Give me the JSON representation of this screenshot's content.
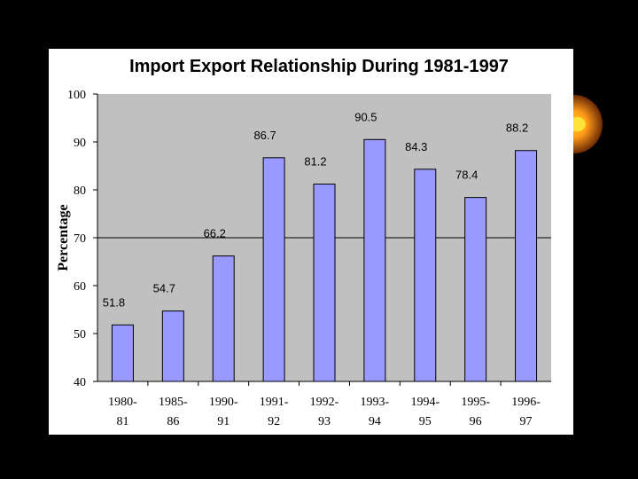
{
  "colors": {
    "background": "#000000",
    "panel": "#ffffff",
    "plot_area": "#c0c0c0",
    "bar": "#9999ff",
    "bar_outline": "#000000",
    "decoration": "#e07a10"
  },
  "chart_data": {
    "type": "bar",
    "title": "Import Export Relationship During 1981-1997",
    "ylabel": "Percentage",
    "xlabel": "",
    "ylim": [
      40,
      100
    ],
    "yticks": [
      40,
      50,
      60,
      70,
      80,
      90,
      100
    ],
    "reference_line": 70,
    "categories": [
      [
        "1980-",
        "81"
      ],
      [
        "1985-",
        "86"
      ],
      [
        "1990-",
        "91"
      ],
      [
        "1991-",
        "92"
      ],
      [
        "1992-",
        "93"
      ],
      [
        "1993-",
        "94"
      ],
      [
        "1994-",
        "95"
      ],
      [
        "1995-",
        "96"
      ],
      [
        "1996-",
        "97"
      ]
    ],
    "values": [
      51.8,
      54.7,
      66.2,
      86.7,
      81.2,
      90.5,
      84.3,
      78.4,
      88.2
    ],
    "value_labels": [
      "51.8",
      "54.7",
      "66.2",
      "86.7",
      "81.2",
      "90.5",
      "84.3",
      "78.4",
      "88.2"
    ],
    "grid": false,
    "legend": "none"
  }
}
